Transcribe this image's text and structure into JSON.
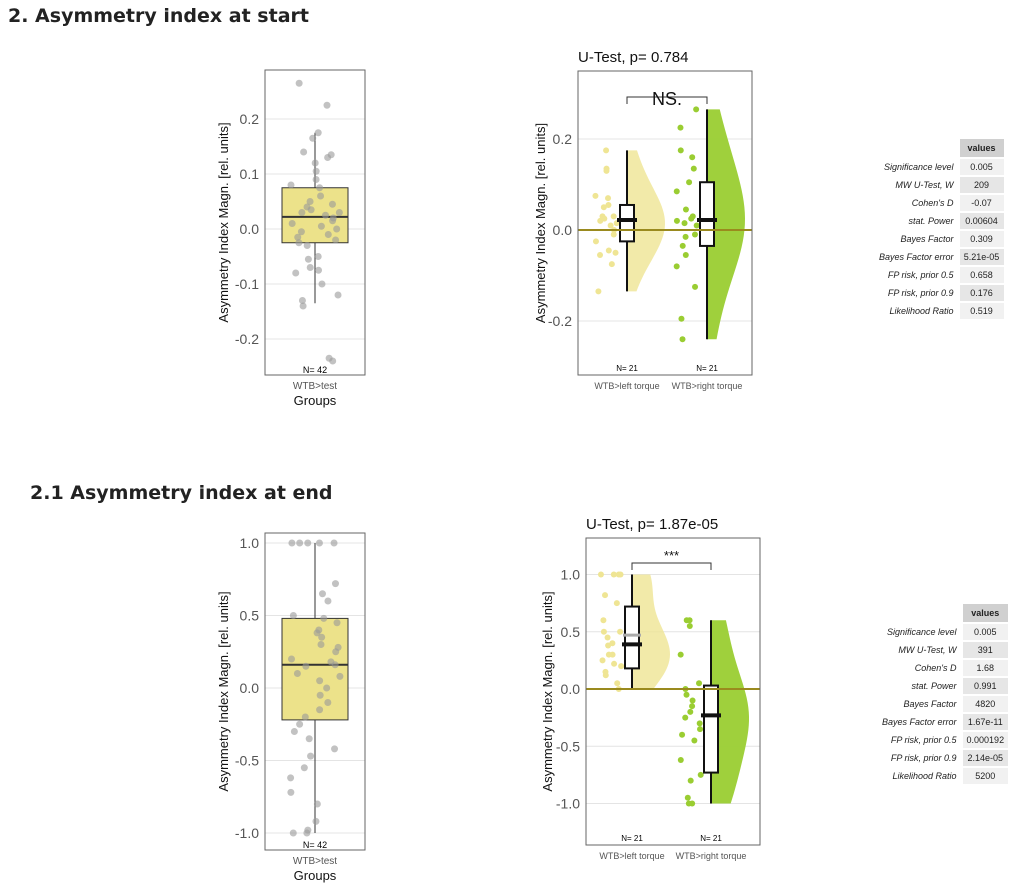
{
  "sections": [
    {
      "heading": "2. Asymmetry index at start"
    },
    {
      "heading": "2.1 Asymmetry index at end"
    }
  ],
  "tables": [
    {
      "header": "values",
      "rows": [
        [
          "Significance level",
          "0.005"
        ],
        [
          "MW U-Test, W",
          "209"
        ],
        [
          "Cohen's D",
          "-0.07"
        ],
        [
          "stat. Power",
          "0.00604"
        ],
        [
          "Bayes Factor",
          "0.309"
        ],
        [
          "Bayes Factor error",
          "5.21e-05"
        ],
        [
          "FP risk, prior  0.5",
          "0.658"
        ],
        [
          "FP risk, prior  0.9",
          "0.176"
        ],
        [
          "Likelihood Ratio",
          "0.519"
        ]
      ]
    },
    {
      "header": "values",
      "rows": [
        [
          "Significance level",
          "0.005"
        ],
        [
          "MW U-Test, W",
          "391"
        ],
        [
          "Cohen's D",
          "1.68"
        ],
        [
          "stat. Power",
          "0.991"
        ],
        [
          "Bayes Factor",
          "4820"
        ],
        [
          "Bayes Factor error",
          "1.67e-11"
        ],
        [
          "FP risk, prior  0.5",
          "0.000192"
        ],
        [
          "FP risk, prior  0.9",
          "2.14e-05"
        ],
        [
          "Likelihood Ratio",
          "5200"
        ]
      ]
    }
  ],
  "colors": {
    "yellow": "#efe594",
    "green": "#9acd32",
    "box": "#ece28a",
    "zero": "#9a8a1e",
    "point": "#999999"
  },
  "chart_data": [
    {
      "type": "box",
      "title": "",
      "ylabel": "Asymmetry Index Magn. [rel. units]",
      "xlabel": "Groups",
      "ticks": [
        0.2,
        0.1,
        0.0,
        -0.1,
        -0.2
      ],
      "tick_labels": [
        "0.2",
        "0.1",
        "0.0",
        "-0.1",
        "-0.2"
      ],
      "groups": [
        {
          "name": "WTB>test",
          "n_label": "N= 42",
          "box": {
            "q1": -0.025,
            "median": 0.022,
            "q3": 0.075,
            "lo": -0.135,
            "hi": 0.175
          },
          "values": [
            0.265,
            0.225,
            0.175,
            0.165,
            0.14,
            0.135,
            0.13,
            0.12,
            0.105,
            0.09,
            0.08,
            0.075,
            0.06,
            0.05,
            0.045,
            0.04,
            0.035,
            0.03,
            0.03,
            0.025,
            0.02,
            0.015,
            0.01,
            0.005,
            0.0,
            -0.005,
            -0.01,
            -0.015,
            -0.02,
            -0.025,
            -0.03,
            -0.05,
            -0.055,
            -0.07,
            -0.075,
            -0.08,
            -0.1,
            -0.12,
            -0.13,
            -0.14,
            -0.235,
            -0.24
          ]
        }
      ]
    },
    {
      "type": "raincloud",
      "title": "U-Test, p= 0.784",
      "significance": "NS.",
      "ylabel": "Asymmetry Index Magn. [rel. units]",
      "ticks": [
        0.2,
        0.0,
        -0.2
      ],
      "tick_labels": [
        "0.2",
        "0.0",
        "-0.2"
      ],
      "groups": [
        {
          "name": "WTB>left torque",
          "n_label": "N= 21",
          "color": "yellow",
          "box": {
            "q1": -0.025,
            "median": 0.022,
            "q3": 0.055,
            "lo": -0.135,
            "hi": 0.175
          },
          "values": [
            0.175,
            0.135,
            0.13,
            0.075,
            0.07,
            0.055,
            0.05,
            0.03,
            0.03,
            0.025,
            0.02,
            0.015,
            0.01,
            0.0,
            -0.01,
            -0.025,
            -0.045,
            -0.05,
            -0.055,
            -0.075,
            -0.135
          ]
        },
        {
          "name": "WTB>right torque",
          "n_label": "N= 21",
          "color": "green",
          "box": {
            "q1": -0.035,
            "median": 0.022,
            "q3": 0.105,
            "lo": -0.24,
            "hi": 0.265
          },
          "values": [
            0.265,
            0.225,
            0.175,
            0.16,
            0.135,
            0.105,
            0.085,
            0.045,
            0.03,
            0.025,
            0.02,
            0.015,
            0.01,
            -0.01,
            -0.015,
            -0.035,
            -0.055,
            -0.08,
            -0.125,
            -0.195,
            -0.24
          ]
        }
      ]
    },
    {
      "type": "box",
      "title": "",
      "ylabel": "Asymmetry Index Magn. [rel. units]",
      "xlabel": "Groups",
      "ticks": [
        1.0,
        0.5,
        0.0,
        -0.5,
        -1.0
      ],
      "tick_labels": [
        "1.0",
        "0.5",
        "0.0",
        "-0.5",
        "-1.0"
      ],
      "groups": [
        {
          "name": "WTB>test",
          "n_label": "N= 42",
          "box": {
            "q1": -0.22,
            "median": 0.16,
            "q3": 0.48,
            "lo": -1.0,
            "hi": 1.0
          },
          "values": [
            1,
            1,
            1,
            1,
            1,
            0.72,
            0.65,
            0.6,
            0.5,
            0.48,
            0.45,
            0.4,
            0.38,
            0.35,
            0.3,
            0.28,
            0.25,
            0.2,
            0.18,
            0.16,
            0.15,
            0.1,
            0.08,
            0.05,
            0,
            -0.05,
            -0.1,
            -0.15,
            -0.2,
            -0.25,
            -0.3,
            -0.35,
            -0.42,
            -0.47,
            -0.55,
            -0.62,
            -0.72,
            -0.8,
            -0.92,
            -0.98,
            -1,
            -1
          ]
        }
      ]
    },
    {
      "type": "raincloud",
      "title": "U-Test, p= 1.87e-05",
      "significance": "***",
      "ylabel": "Asymmetry Index Magn. [rel. units]",
      "ticks": [
        1.0,
        0.5,
        0.0,
        -0.5,
        -1.0
      ],
      "tick_labels": [
        "1.0",
        "0.5",
        "0.0",
        "-0.5",
        "-1.0"
      ],
      "groups": [
        {
          "name": "WTB>left torque",
          "n_label": "N= 21",
          "color": "yellow",
          "mean": 0.47,
          "box": {
            "q1": 0.18,
            "median": 0.39,
            "q3": 0.72,
            "lo": 0.0,
            "hi": 1.0
          },
          "values": [
            1,
            1,
            1,
            1,
            0.82,
            0.75,
            0.6,
            0.5,
            0.5,
            0.45,
            0.4,
            0.38,
            0.3,
            0.3,
            0.25,
            0.22,
            0.2,
            0.15,
            0.12,
            0.05,
            0
          ]
        },
        {
          "name": "WTB>right torque",
          "n_label": "N= 21",
          "color": "green",
          "mean": -0.23,
          "box": {
            "q1": -0.73,
            "median": -0.23,
            "q3": 0.03,
            "lo": -1.0,
            "hi": 0.6
          },
          "values": [
            0.6,
            0.6,
            0.55,
            0.3,
            0.05,
            0,
            -0.05,
            -0.1,
            -0.15,
            -0.2,
            -0.25,
            -0.3,
            -0.35,
            -0.4,
            -0.45,
            -0.62,
            -0.75,
            -0.8,
            -0.95,
            -1,
            -1
          ]
        }
      ]
    }
  ]
}
